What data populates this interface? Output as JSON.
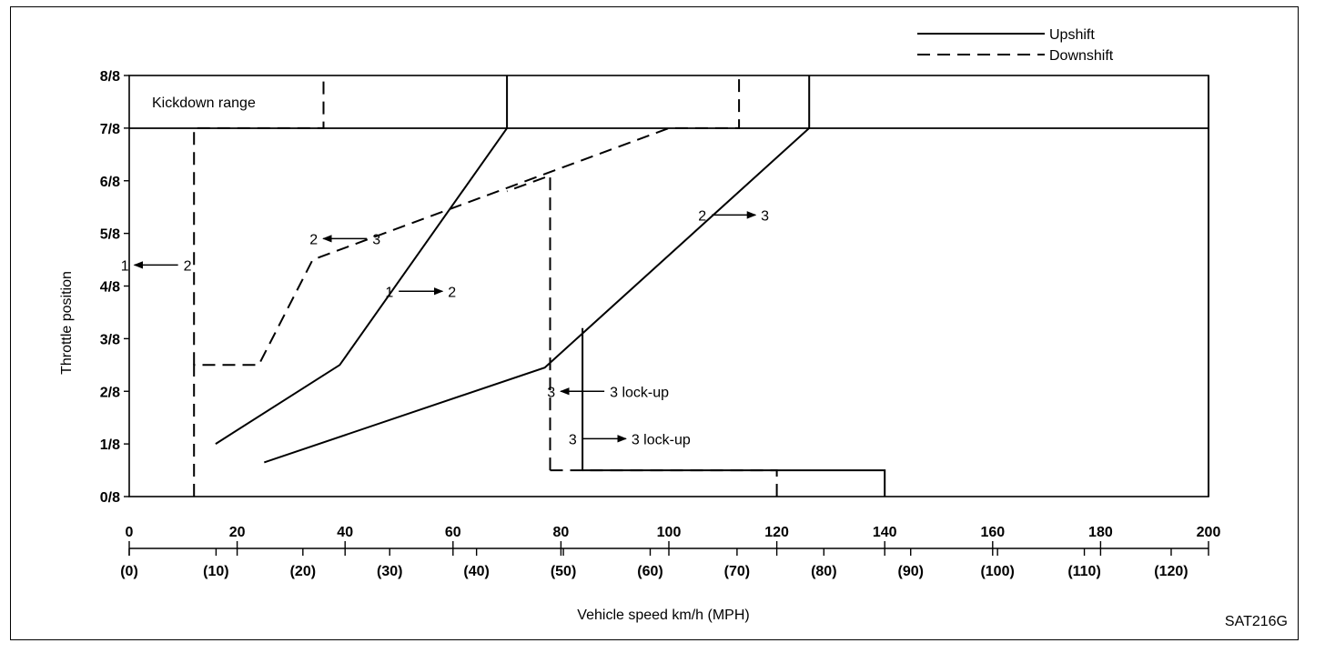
{
  "chart_data": {
    "type": "line",
    "ylabel": "Throttle position",
    "xlabel": "Vehicle speed km/h (MPH)",
    "code": "SAT216G",
    "region_label": "Kickdown range",
    "y_ticks": [
      "0/8",
      "1/8",
      "2/8",
      "3/8",
      "4/8",
      "5/8",
      "6/8",
      "7/8",
      "8/8"
    ],
    "ylim": [
      0,
      8
    ],
    "xlim": [
      0,
      200
    ],
    "x_ticks_kmh": [
      "0",
      "20",
      "40",
      "60",
      "80",
      "100",
      "120",
      "140",
      "160",
      "180",
      "200"
    ],
    "x_ticks_mph": [
      "(0)",
      "(10)",
      "(20)",
      "(30)",
      "(40)",
      "(50)",
      "(60)",
      "(70)",
      "(80)",
      "(90)",
      "(100)",
      "(110)",
      "(120)"
    ],
    "legend": [
      {
        "label": "Upshift",
        "style": "solid"
      },
      {
        "label": "Downshift",
        "style": "dashed"
      }
    ],
    "series": [
      {
        "style": "solid",
        "points": [
          [
            16,
            1
          ],
          [
            39,
            2.5
          ],
          [
            70,
            7
          ],
          [
            70,
            8
          ]
        ]
      },
      {
        "style": "solid",
        "points": [
          [
            25,
            0.65
          ],
          [
            77,
            2.45
          ],
          [
            126,
            7
          ],
          [
            126,
            8
          ]
        ]
      },
      {
        "style": "solid",
        "points": [
          [
            84,
            0.5
          ],
          [
            84,
            3.2
          ]
        ]
      },
      {
        "style": "solid",
        "points": [
          [
            84,
            0.5
          ],
          [
            140,
            0.5
          ],
          [
            140,
            0
          ]
        ]
      },
      {
        "style": "solid",
        "points": [
          [
            200,
            0
          ],
          [
            200,
            8
          ]
        ]
      },
      {
        "style": "dashed",
        "points": [
          [
            12,
            0
          ],
          [
            12,
            2.5
          ],
          [
            24,
            2.5
          ],
          [
            34,
            4.5
          ],
          [
            100,
            7
          ],
          [
            113,
            7
          ],
          [
            113,
            8
          ]
        ]
      },
      {
        "style": "dashed",
        "points": [
          [
            12,
            2.5
          ],
          [
            12,
            7
          ],
          [
            36,
            7
          ],
          [
            36,
            8
          ]
        ]
      },
      {
        "style": "dashed",
        "points": [
          [
            78,
            0.5
          ],
          [
            78,
            6.1
          ],
          [
            70,
            5.8
          ]
        ]
      },
      {
        "style": "dashed",
        "points": [
          [
            78,
            0.5
          ],
          [
            120,
            0.5
          ],
          [
            120,
            0
          ]
        ]
      }
    ],
    "annotations": [
      {
        "from": "1",
        "to": "2",
        "x": 5,
        "y": 4.4,
        "dir": "left"
      },
      {
        "from": "2",
        "to": "3",
        "x": 40,
        "y": 4.9,
        "dir": "left"
      },
      {
        "from": "1",
        "to": "2",
        "x": 54,
        "y": 3.9,
        "dir": "right"
      },
      {
        "from": "2",
        "to": "3",
        "x": 112,
        "y": 5.35,
        "dir": "right"
      },
      {
        "from": "3",
        "to": "3 lock-up",
        "x": 84,
        "y": 2,
        "dir": "left"
      },
      {
        "from": "3",
        "to": "3 lock-up",
        "x": 88,
        "y": 1.1,
        "dir": "right"
      }
    ]
  }
}
